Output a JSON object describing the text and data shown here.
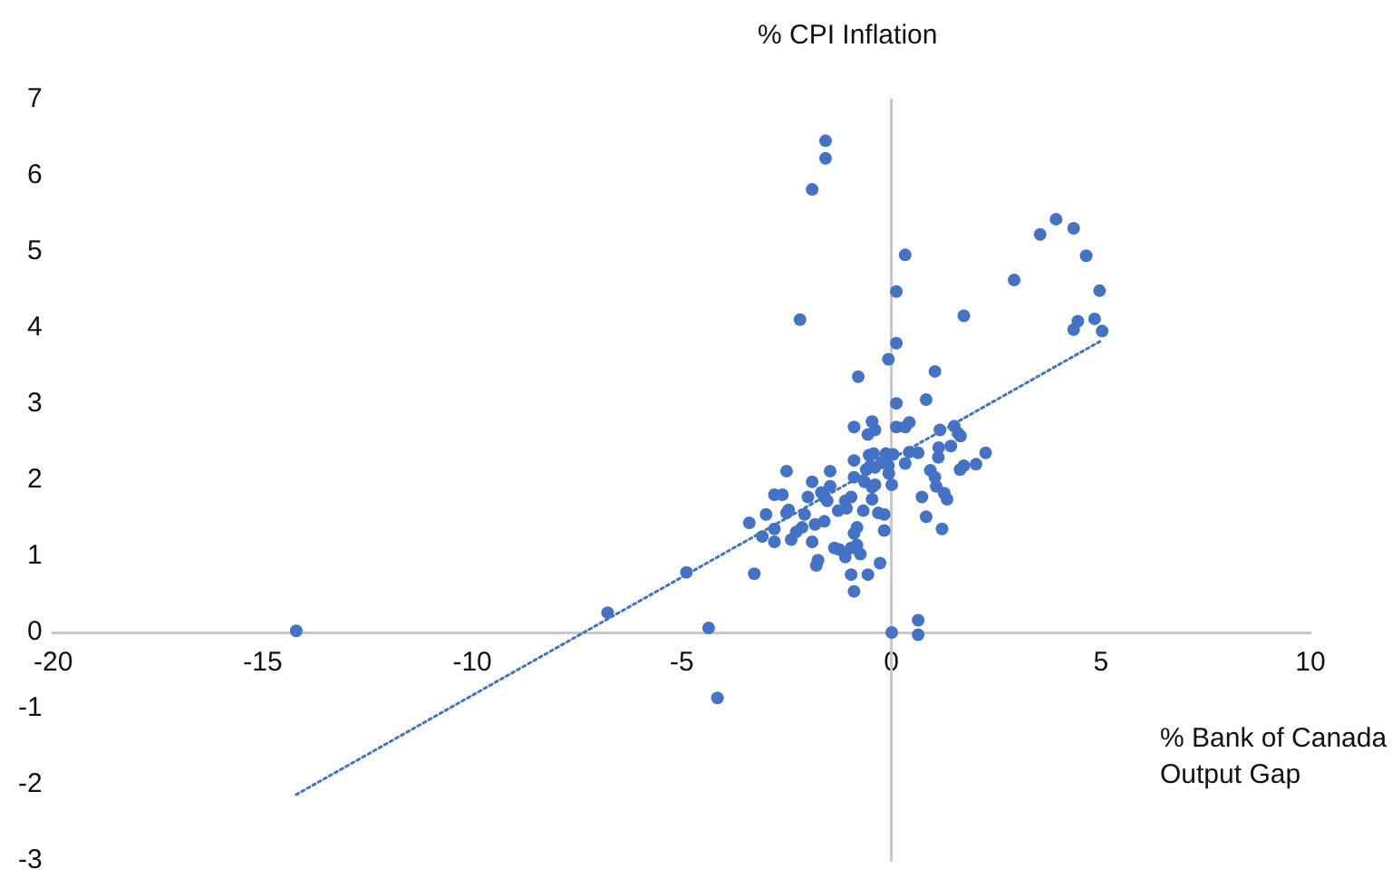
{
  "chart_data": {
    "type": "scatter",
    "xlabel": "% Bank of Canada Output Gap",
    "ylabel": "% CPI Inflation",
    "xlim": [
      -20,
      10
    ],
    "xticks": [
      -20,
      -15,
      -10,
      -5,
      0,
      5,
      10
    ],
    "ylim": [
      -3,
      7
    ],
    "yticks": [
      -3,
      -2,
      -1,
      0,
      1,
      2,
      3,
      4,
      5,
      6,
      7
    ],
    "legend": false,
    "marker": "circle",
    "series": [
      {
        "color": "#4472c4",
        "x": [
          -0.07,
          -0.79,
          1.04,
          0.12,
          0.83,
          -0.89,
          -0.46,
          -0.39,
          -0.56,
          0.12,
          0.33,
          0.43,
          1.16,
          1.5,
          1.59,
          1.65,
          1.13,
          1.42,
          2.25,
          -0.89,
          -0.53,
          -0.42,
          -0.13,
          0.04,
          0.43,
          0.64,
          0.33,
          1.12,
          -0.5,
          -0.39,
          -0.6,
          -0.24,
          -0.07,
          -0.06,
          0.01,
          -0.39,
          -0.46,
          -0.64,
          -0.89,
          -1.46,
          -1.46,
          -1.67,
          -1.89,
          -1.99,
          -2.5,
          -2.79,
          -2.6,
          -1.1,
          -0.96,
          -1.27,
          -1.07,
          -1.53,
          -1.6,
          -0.67,
          -0.46,
          -0.31,
          -0.17,
          0.93,
          1.04,
          1.07,
          0.73,
          1.26,
          1.33,
          1.64,
          1.73,
          2.02,
          0.83,
          1.21,
          -2.45,
          -2.5,
          -2.99,
          -2.07,
          -3.39,
          -2.79,
          -3.08,
          -2.79,
          -2.39,
          -2.27,
          -2.13,
          -1.82,
          -1.6,
          -1.89,
          -0.82,
          -0.89,
          -0.82,
          -1.24,
          -1.1,
          -0.96,
          -0.74,
          -0.27,
          -1.36,
          -0.17,
          -1.75,
          -1.79,
          -0.96,
          -0.56,
          -3.27,
          -0.89,
          0.01,
          0.64,
          0.64,
          -4.89,
          -6.77,
          -14.2,
          -4.36,
          -4.15,
          -1.57,
          -1.57,
          -1.89,
          0.33,
          0.12,
          -2.18,
          1.73,
          0.12,
          2.93,
          3.55,
          3.93,
          4.35,
          4.65,
          4.97,
          4.85,
          4.45,
          4.35,
          5.03
        ],
        "values": [
          3.59,
          3.36,
          3.43,
          3.01,
          3.06,
          2.7,
          2.77,
          2.66,
          2.6,
          2.7,
          2.7,
          2.76,
          2.66,
          2.71,
          2.62,
          2.58,
          2.43,
          2.45,
          2.36,
          2.26,
          2.33,
          2.35,
          2.35,
          2.34,
          2.37,
          2.36,
          2.22,
          2.3,
          2.19,
          2.17,
          2.14,
          2.23,
          2.19,
          2.09,
          1.94,
          1.94,
          1.91,
          1.98,
          2.04,
          2.12,
          1.92,
          1.84,
          1.98,
          1.78,
          2.12,
          1.81,
          1.81,
          1.73,
          1.78,
          1.6,
          1.63,
          1.73,
          1.78,
          1.6,
          1.75,
          1.57,
          1.55,
          2.13,
          2.04,
          1.92,
          1.78,
          1.83,
          1.75,
          2.14,
          2.19,
          2.21,
          1.52,
          1.36,
          1.61,
          1.57,
          1.55,
          1.55,
          1.44,
          1.36,
          1.26,
          1.19,
          1.22,
          1.32,
          1.38,
          1.42,
          1.46,
          1.19,
          1.38,
          1.3,
          1.15,
          1.09,
          0.99,
          1.11,
          1.03,
          0.91,
          1.11,
          1.34,
          0.95,
          0.88,
          0.76,
          0.76,
          0.77,
          0.54,
          0,
          0.16,
          -0.03,
          0.79,
          0.26,
          0.02,
          0.06,
          -0.86,
          6.46,
          6.23,
          5.82,
          4.96,
          4.48,
          4.11,
          4.16,
          3.8,
          4.63,
          5.23,
          5.43,
          5.31,
          4.95,
          4.49,
          4.12,
          4.09,
          3.98,
          3.96
        ]
      },
      {
        "type": "line",
        "color": "#4472c4",
        "line_style": "dotted",
        "marker": "none",
        "x": [
          -14.2,
          5.03
        ],
        "values": [
          -2.13,
          3.84
        ]
      }
    ]
  }
}
